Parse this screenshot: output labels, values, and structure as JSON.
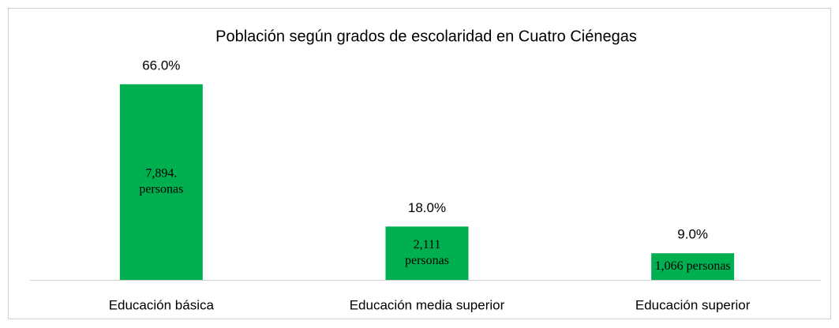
{
  "chart_data": {
    "type": "bar",
    "title": "Población según grados de escolaridad en Cuatro Ciénegas",
    "categories": [
      "Educación básica",
      "Educación media superior",
      "Educación superior"
    ],
    "values": [
      66.0,
      18.0,
      9.0
    ],
    "value_labels": [
      "66.0%",
      "18.0%",
      "9.0%"
    ],
    "inner_labels": [
      [
        "7,894.",
        "personas"
      ],
      [
        "2,111",
        "personas"
      ],
      [
        "1,066 personas"
      ]
    ],
    "color": "#00b050"
  }
}
